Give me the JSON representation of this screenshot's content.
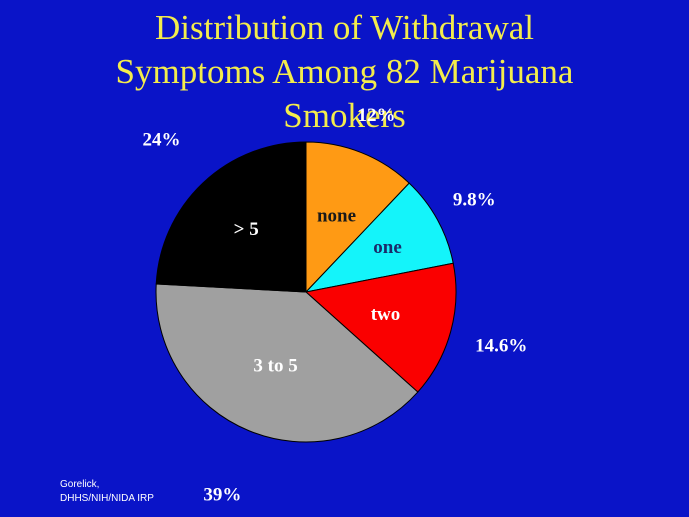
{
  "slide": {
    "title_lines": [
      "Distribution of Withdrawal",
      "Symptoms Among 82 Marijuana",
      "Smokers"
    ],
    "source_lines": [
      "Gorelick,",
      "DHHS/NIH/NIDA IRP"
    ]
  },
  "chart_data": {
    "type": "pie",
    "title": "Distribution of Withdrawal Symptoms Among 82 Marijuana Smokers",
    "start_angle_deg": 0,
    "direction": "clockwise",
    "slices": [
      {
        "label": "none",
        "value": 12,
        "value_label": "12%",
        "color": "#ff9a14",
        "label_color": "#1a1a1a"
      },
      {
        "label": "one",
        "value": 9.8,
        "value_label": "9.8%",
        "color": "#14f4fa",
        "label_color": "#1a2a6a"
      },
      {
        "label": "two",
        "value": 14.6,
        "value_label": "14.6%",
        "color": "#fa0000",
        "label_color": "#ffffff"
      },
      {
        "label": "3 to 5",
        "value": 39,
        "value_label": "39%",
        "color": "#a0a0a0",
        "label_color": "#ffffff"
      },
      {
        "label": "> 5",
        "value": 24,
        "value_label": "24%",
        "color": "#000000",
        "label_color": "#ffffff"
      }
    ],
    "slice_border_color": "#000000"
  }
}
